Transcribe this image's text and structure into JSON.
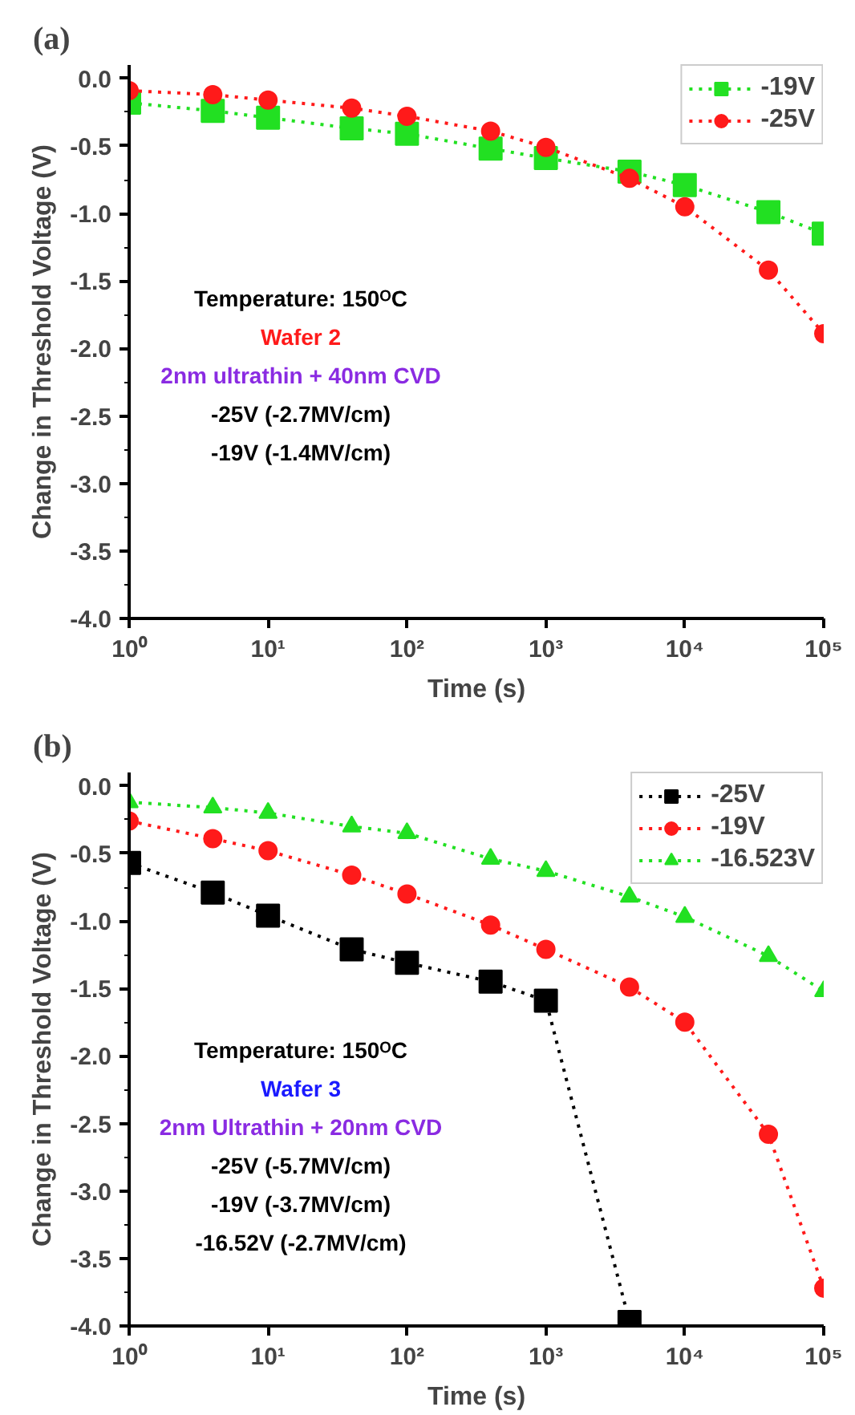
{
  "chart_data": [
    {
      "type": "line",
      "title": "(a)",
      "xlabel": "Time (s)",
      "ylabel": "Change in Threshold Voltage (V)",
      "log": "x",
      "x": [
        1,
        4,
        10,
        40,
        100,
        400,
        1000,
        4000,
        10000,
        40000,
        100000
      ],
      "xlim": [
        1,
        100000
      ],
      "ylim": [
        -4.0,
        0.1
      ],
      "xticks": [
        {
          "value": 1,
          "label": "10⁰"
        },
        {
          "value": 10,
          "label": "10¹"
        },
        {
          "value": 100,
          "label": "10²"
        },
        {
          "value": 1000,
          "label": "10³"
        },
        {
          "value": 10000,
          "label": "10⁴"
        },
        {
          "value": 100000,
          "label": "10⁵"
        }
      ],
      "yticks": [
        {
          "value": 0,
          "label": "0.0"
        },
        {
          "value": -0.5,
          "label": "-0.5"
        },
        {
          "value": -1,
          "label": "-1.0"
        },
        {
          "value": -1.5,
          "label": "-1.5"
        },
        {
          "value": -2,
          "label": "-2.0"
        },
        {
          "value": -2.5,
          "label": "-2.5"
        },
        {
          "value": -3,
          "label": "-3.0"
        },
        {
          "value": -3.5,
          "label": "-3.5"
        },
        {
          "value": -4,
          "label": "-4.0"
        }
      ],
      "line_style": "dotted",
      "legend": "top right",
      "series": [
        {
          "name": "-19V",
          "color": "#22e022",
          "marker": "square",
          "values": [
            -0.18,
            -0.24,
            -0.29,
            -0.37,
            -0.41,
            -0.52,
            -0.59,
            -0.69,
            -0.79,
            -0.99,
            -1.15
          ]
        },
        {
          "name": "-25V",
          "color": "#ff1a1a",
          "marker": "circle",
          "values": [
            -0.09,
            -0.12,
            -0.16,
            -0.22,
            -0.28,
            -0.39,
            -0.51,
            -0.74,
            -0.95,
            -1.42,
            -1.89
          ]
        }
      ],
      "annotations": [
        "Temperature: 150ᴼC",
        "Wafer 2",
        "2nm ultrathin + 40nm CVD",
        "-25V (-2.7MV/cm)",
        "-19V (-1.4MV/cm)"
      ]
    },
    {
      "type": "line",
      "title": "(b)",
      "xlabel": "Time (s)",
      "ylabel": "Change in Threshold Voltage (V)",
      "log": "x",
      "x": [
        1,
        4,
        10,
        40,
        100,
        400,
        1000,
        4000,
        10000,
        40000,
        100000
      ],
      "xlim": [
        1,
        100000
      ],
      "ylim": [
        -4.0,
        0.1
      ],
      "xticks": [
        {
          "value": 1,
          "label": "10⁰"
        },
        {
          "value": 10,
          "label": "10¹"
        },
        {
          "value": 100,
          "label": "10²"
        },
        {
          "value": 1000,
          "label": "10³"
        },
        {
          "value": 10000,
          "label": "10⁴"
        },
        {
          "value": 100000,
          "label": "10⁵"
        }
      ],
      "yticks": [
        {
          "value": 0,
          "label": "0.0"
        },
        {
          "value": -0.5,
          "label": "-0.5"
        },
        {
          "value": -1,
          "label": "-1.0"
        },
        {
          "value": -1.5,
          "label": "-1.5"
        },
        {
          "value": -2,
          "label": "-2.0"
        },
        {
          "value": -2.5,
          "label": "-2.5"
        },
        {
          "value": -3,
          "label": "-3.0"
        },
        {
          "value": -3.5,
          "label": "-3.5"
        },
        {
          "value": -4,
          "label": "-4.0"
        }
      ],
      "line_style": "dotted",
      "legend": "top right",
      "series": [
        {
          "name": "-25V",
          "color": "#000000",
          "marker": "square",
          "values": [
            -0.57,
            -0.79,
            -0.96,
            -1.21,
            -1.31,
            -1.45,
            -1.59,
            -3.97,
            null,
            null,
            null
          ]
        },
        {
          "name": "-19V",
          "color": "#ff1a1a",
          "marker": "circle",
          "values": [
            -0.26,
            -0.39,
            -0.48,
            -0.66,
            -0.8,
            -1.03,
            -1.21,
            -1.49,
            -1.75,
            -2.58,
            -3.72
          ]
        },
        {
          "name": "-16.523V",
          "color": "#22e022",
          "marker": "triangle",
          "values": [
            -0.12,
            -0.16,
            -0.2,
            -0.3,
            -0.35,
            -0.54,
            -0.63,
            -0.82,
            -0.97,
            -1.26,
            -1.52
          ]
        }
      ],
      "annotations": [
        "Temperature: 150ᴼC",
        "Wafer 3",
        "2nm Ultrathin + 20nm CVD",
        "-25V (-5.7MV/cm)",
        "-19V (-3.7MV/cm)",
        "-16.52V (-2.7MV/cm)"
      ]
    }
  ]
}
